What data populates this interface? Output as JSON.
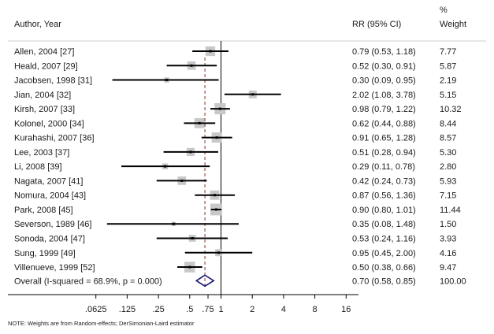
{
  "chart_data": {
    "type": "forest",
    "title": "",
    "columns": {
      "study": "Author, Year",
      "estimate": "RR (95% CI)",
      "weight_line1": "%",
      "weight_line2": "Weight"
    },
    "x_scale": "log2",
    "xlim": [
      0.0625,
      16
    ],
    "null_value": 1,
    "x_ticks": [
      0.0625,
      0.125,
      0.25,
      0.5,
      0.75,
      1,
      2,
      4,
      8,
      16
    ],
    "x_tick_labels": [
      ".0625",
      ".125",
      ".25",
      ".5",
      ".75",
      "1",
      "2",
      "4",
      "8",
      "16"
    ],
    "studies": [
      {
        "label": "Allen, 2004 [27]",
        "rr": 0.79,
        "lo": 0.53,
        "hi": 1.18,
        "ci_text": "0.79 (0.53, 1.18)",
        "weight": "7.77"
      },
      {
        "label": "Heald, 2007 [29]",
        "rr": 0.52,
        "lo": 0.3,
        "hi": 0.91,
        "ci_text": "0.52 (0.30, 0.91)",
        "weight": "5.87"
      },
      {
        "label": "Jacobsen, 1998 [31]",
        "rr": 0.3,
        "lo": 0.09,
        "hi": 0.95,
        "ci_text": "0.30 (0.09, 0.95)",
        "weight": "2.19"
      },
      {
        "label": "Jian, 2004 [32]",
        "rr": 2.02,
        "lo": 1.08,
        "hi": 3.78,
        "ci_text": "2.02 (1.08, 3.78)",
        "weight": "5.15"
      },
      {
        "label": "Kirsh, 2007 [33]",
        "rr": 0.98,
        "lo": 0.79,
        "hi": 1.22,
        "ci_text": "0.98 (0.79, 1.22)",
        "weight": "10.32"
      },
      {
        "label": "Kolonel, 2000 [34]",
        "rr": 0.62,
        "lo": 0.44,
        "hi": 0.88,
        "ci_text": "0.62 (0.44, 0.88)",
        "weight": "8.44"
      },
      {
        "label": "Kurahashi, 2007 [36]",
        "rr": 0.91,
        "lo": 0.65,
        "hi": 1.28,
        "ci_text": "0.91 (0.65, 1.28)",
        "weight": "8.57"
      },
      {
        "label": "Lee, 2003 [37]",
        "rr": 0.51,
        "lo": 0.28,
        "hi": 0.94,
        "ci_text": "0.51 (0.28, 0.94)",
        "weight": "5.30"
      },
      {
        "label": "Li, 2008 [39]",
        "rr": 0.29,
        "lo": 0.11,
        "hi": 0.78,
        "ci_text": "0.29 (0.11, 0.78)",
        "weight": "2.80"
      },
      {
        "label": "Nagata, 2007 [41]",
        "rr": 0.42,
        "lo": 0.24,
        "hi": 0.73,
        "ci_text": "0.42 (0.24, 0.73)",
        "weight": "5.93"
      },
      {
        "label": "Nomura, 2004 [43]",
        "rr": 0.87,
        "lo": 0.56,
        "hi": 1.36,
        "ci_text": "0.87 (0.56, 1.36)",
        "weight": "7.15"
      },
      {
        "label": "Park, 2008 [45]",
        "rr": 0.9,
        "lo": 0.8,
        "hi": 1.01,
        "ci_text": "0.90 (0.80, 1.01)",
        "weight": "11.44"
      },
      {
        "label": "Severson, 1989 [46]",
        "rr": 0.35,
        "lo": 0.08,
        "hi": 1.48,
        "ci_text": "0.35 (0.08, 1.48)",
        "weight": "1.50"
      },
      {
        "label": "Sonoda, 2004 [47]",
        "rr": 0.53,
        "lo": 0.24,
        "hi": 1.16,
        "ci_text": "0.53 (0.24, 1.16)",
        "weight": "3.93"
      },
      {
        "label": "Sung, 1999 [49]",
        "rr": 0.95,
        "lo": 0.45,
        "hi": 2.0,
        "ci_text": "0.95 (0.45, 2.00)",
        "weight": "4.16"
      },
      {
        "label": "Villenueve, 1999 [52]",
        "rr": 0.5,
        "lo": 0.38,
        "hi": 0.66,
        "ci_text": "0.50 (0.38, 0.66)",
        "weight": "9.47"
      }
    ],
    "overall": {
      "label": "Overall (I-squared = 68.9%, p = 0.000)",
      "rr": 0.7,
      "lo": 0.58,
      "hi": 0.85,
      "ci_text": "0.70 (0.58, 0.85)",
      "weight": "100.00"
    },
    "note": "NOTE: Weights are from Random-effects; DerSimonian-Laird estimator",
    "colors": {
      "box": "#c8c8c8",
      "ci_line": "#000000",
      "diamond": "#1a1a7a",
      "overall_dashed": "#8b2a2a",
      "divider": "#cccccc"
    }
  }
}
